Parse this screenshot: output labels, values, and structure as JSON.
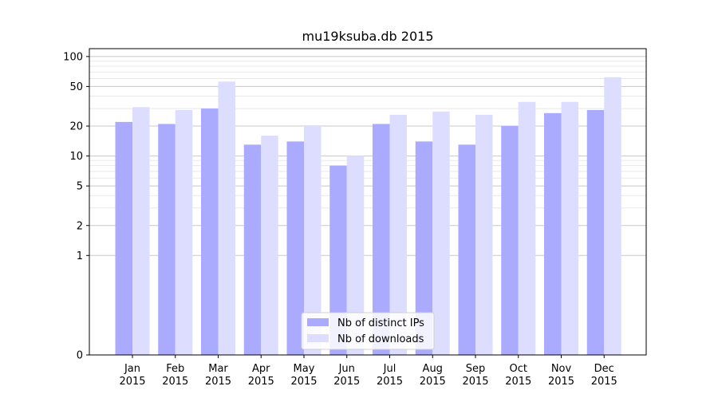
{
  "chart_data": {
    "type": "bar",
    "title": "mu19ksuba.db 2015",
    "xlabel": "",
    "ylabel": "",
    "y_scale": "symlog",
    "ylim": [
      0,
      120
    ],
    "y_ticks": [
      0,
      1,
      2,
      5,
      10,
      20,
      50,
      100
    ],
    "y_tick_labels": [
      "0",
      "1",
      "2",
      "5",
      "10",
      "20",
      "50",
      "100"
    ],
    "grid": true,
    "legend_placement": "bottom-center",
    "categories": [
      "Jan\n2015",
      "Feb\n2015",
      "Mar\n2015",
      "Apr\n2015",
      "May\n2015",
      "Jun\n2015",
      "Jul\n2015",
      "Aug\n2015",
      "Sep\n2015",
      "Oct\n2015",
      "Nov\n2015",
      "Dec\n2015"
    ],
    "series": [
      {
        "name": "Nb of distinct IPs",
        "color": "#aaaaff",
        "values": [
          22,
          21,
          30,
          13,
          14,
          8,
          21,
          14,
          13,
          20,
          27,
          29
        ]
      },
      {
        "name": "Nb of downloads",
        "color": "#ddddff",
        "values": [
          31,
          29,
          56,
          16,
          20,
          10,
          26,
          28,
          26,
          35,
          35,
          62
        ]
      }
    ]
  }
}
